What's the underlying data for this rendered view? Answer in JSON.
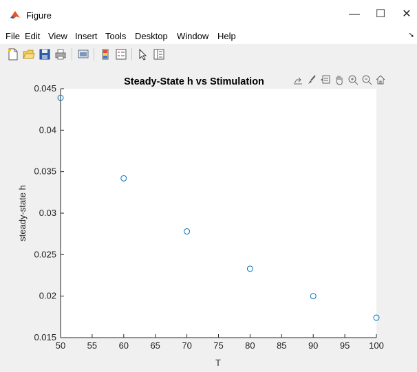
{
  "window": {
    "title": "Figure"
  },
  "menu": [
    "File",
    "Edit",
    "View",
    "Insert",
    "Tools",
    "Desktop",
    "Window",
    "Help"
  ],
  "chart_data": {
    "type": "scatter",
    "title": "Steady-State h vs Stimulation",
    "xlabel": "T",
    "ylabel": "steady-state h",
    "xlim": [
      50,
      100
    ],
    "ylim": [
      0.015,
      0.045
    ],
    "xticks": [
      "50",
      "55",
      "60",
      "65",
      "70",
      "75",
      "80",
      "85",
      "90",
      "95",
      "100"
    ],
    "yticks": [
      "0.015",
      "0.02",
      "0.025",
      "0.03",
      "0.035",
      "0.04",
      "0.045"
    ],
    "x": [
      50,
      60,
      70,
      80,
      90,
      100
    ],
    "y": [
      0.0439,
      0.0342,
      0.0278,
      0.0233,
      0.02,
      0.0174
    ],
    "marker": "circle",
    "marker_color": "#0072bd",
    "grid": false
  }
}
